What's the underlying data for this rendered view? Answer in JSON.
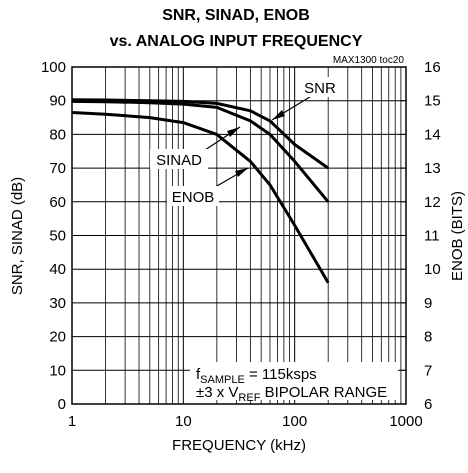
{
  "chart_data": {
    "type": "line",
    "title": [
      "SNR, SINAD, ENOB",
      "vs. ANALOG INPUT FREQUENCY"
    ],
    "note": "MAX1300 toc20",
    "xlabel": "FREQUENCY (kHz)",
    "ylabel": "SNR, SINAD (dB)",
    "y2label": "ENOB (BITS)",
    "xscale": "log",
    "grid": true,
    "xlim": [
      1,
      1000
    ],
    "xticks": [
      1,
      10,
      100,
      1000
    ],
    "xminor": [
      2,
      3,
      4,
      5,
      6,
      7,
      8,
      9,
      20,
      30,
      40,
      50,
      60,
      70,
      80,
      90,
      200,
      300,
      400,
      500,
      600,
      700,
      800,
      900
    ],
    "ylim": [
      0,
      100
    ],
    "yticks": [
      0,
      10,
      20,
      30,
      40,
      50,
      60,
      70,
      80,
      90,
      100
    ],
    "y2lim": [
      6,
      16
    ],
    "y2ticks": [
      6,
      7,
      8,
      9,
      10,
      11,
      12,
      13,
      14,
      15,
      16
    ],
    "x": [
      1,
      2,
      5,
      10,
      20,
      40,
      60,
      100,
      200
    ],
    "series": [
      {
        "name": "SNR",
        "color": "#000000",
        "values": [
          90.3,
          90.2,
          90.0,
          89.8,
          89.2,
          87,
          84,
          77,
          70
        ]
      },
      {
        "name": "SINAD",
        "color": "#000000",
        "values": [
          89.8,
          89.7,
          89.4,
          89,
          88,
          84,
          80,
          72,
          60
        ]
      },
      {
        "name": "ENOB",
        "color": "#000000",
        "axis": "y2",
        "values": [
          14.65,
          14.6,
          14.5,
          14.35,
          14.0,
          13.2,
          12.5,
          11.3,
          9.6
        ]
      }
    ],
    "conditions": [
      {
        "main": "f",
        "sub": "SAMPLE",
        "rest": " = 115ksps"
      },
      {
        "main": "±3 x V",
        "sub": "REF",
        "rest": " BIPOLAR RANGE"
      }
    ]
  }
}
